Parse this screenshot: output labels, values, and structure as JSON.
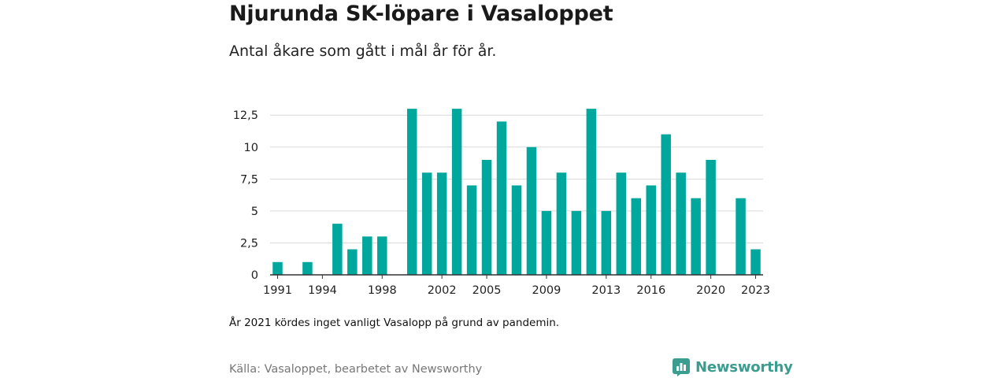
{
  "title": "Njurunda SK-löpare i Vasaloppet",
  "subtitle": "Antal åkare som gått i mål år för år.",
  "note": "År 2021 kördes inget vanligt Vasalopp på grund av pandemin.",
  "source": "Källa: Vasaloppet, bearbetet av Newsworthy",
  "logo": {
    "text": "Newsworthy",
    "icon": "newsworthy-logo-icon"
  },
  "colors": {
    "bar": "#00a79d",
    "grid": "#d9d9d9",
    "axis": "#333333",
    "brand": "#3a9d8f"
  },
  "chart_data": {
    "type": "bar",
    "categories": [
      "1991",
      "1992",
      "1993",
      "1994",
      "1995",
      "1996",
      "1997",
      "1998",
      "1999",
      "2000",
      "2001",
      "2002",
      "2003",
      "2004",
      "2005",
      "2006",
      "2007",
      "2008",
      "2009",
      "2010",
      "2011",
      "2012",
      "2013",
      "2014",
      "2015",
      "2016",
      "2017",
      "2018",
      "2019",
      "2020",
      "2021",
      "2022",
      "2023"
    ],
    "values": [
      1,
      0,
      1,
      0,
      4,
      2,
      3,
      3,
      0,
      13,
      8,
      8,
      13,
      7,
      9,
      12,
      7,
      10,
      5,
      8,
      5,
      13,
      5,
      8,
      6,
      7,
      11,
      8,
      6,
      9,
      0,
      6,
      2
    ],
    "x_tick_labels": [
      "1991",
      "1994",
      "1998",
      "2002",
      "2005",
      "2009",
      "2013",
      "2016",
      "2020",
      "2023"
    ],
    "y_ticks": [
      0,
      2.5,
      5,
      7.5,
      10,
      12.5
    ],
    "y_tick_labels": [
      "0",
      "2,5",
      "5",
      "7,5",
      "10",
      "12,5"
    ],
    "ylim": [
      0,
      13.5
    ],
    "grid": true,
    "xlabel": "",
    "ylabel": ""
  }
}
